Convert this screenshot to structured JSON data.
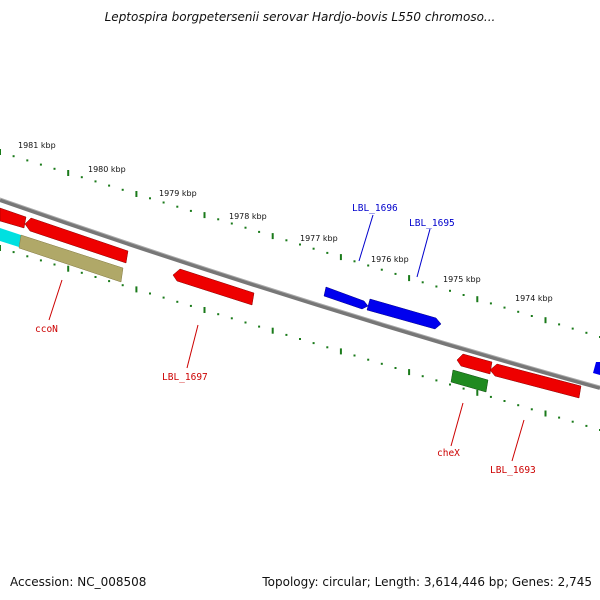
{
  "title": "Leptospira borgpetersenii serovar Hardjo-bovis L550 chromoso...",
  "footer": {
    "accession": "Accession: NC_008508",
    "summary": "Topology: circular; Length: 3,614,446 bp; Genes: 2,745"
  },
  "colors": {
    "backbone": "#777777",
    "tick": "#1a7a1a",
    "forward_gene": "#0000ee",
    "reverse_gene": "#ee0000",
    "other_a": "#208a20",
    "other_b": "#b0a868",
    "other_c": "#00e0e0",
    "label_blue": "#0000cc",
    "label_red": "#cc0000"
  },
  "ticks": [
    "1981 kbp",
    "1980 kbp",
    "1979 kbp",
    "1978 kbp",
    "1977 kbp",
    "1976 kbp",
    "1975 kbp",
    "1974 kbp"
  ],
  "gene_labels": {
    "ccoN": "ccoN",
    "LBL_1697": "LBL_1697",
    "LBL_1696": "LBL_1696",
    "LBL_1695": "LBL_1695",
    "cheX": "cheX",
    "LBL_1693": "LBL_1693"
  }
}
